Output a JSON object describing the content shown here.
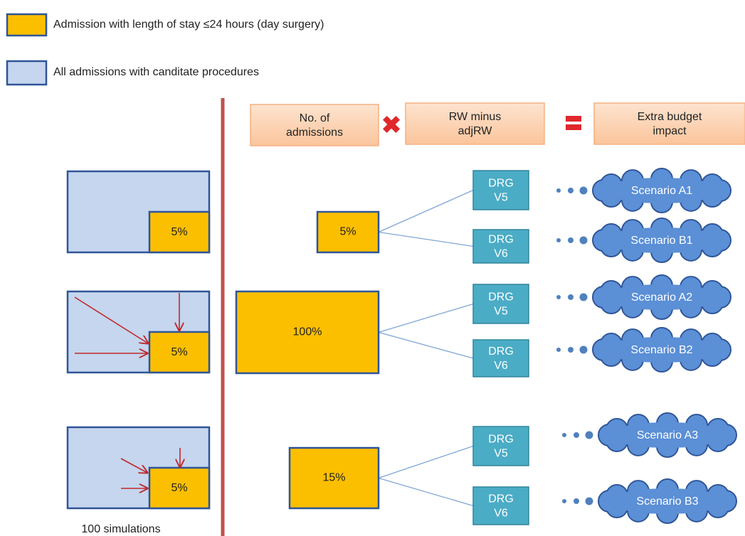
{
  "legend": [
    {
      "label": "Admission with length of stay ≤24 hours (day surgery)"
    },
    {
      "label": "All admissions with canditate procedures"
    }
  ],
  "header": [
    [
      "No. of",
      "admissions"
    ],
    [
      "RW minus",
      "adjRW"
    ],
    [
      "Extra budget",
      "impact"
    ]
  ],
  "left_panels": [
    "5%",
    "5%",
    "5%"
  ],
  "footer": "100 simulations",
  "groups": [
    {
      "share": "5%",
      "drgs": [
        [
          "DRG",
          "V5"
        ],
        [
          "DRG",
          "V6"
        ]
      ],
      "scenarios": [
        "Scenario A1",
        "Scenario B1"
      ]
    },
    {
      "share": "100%",
      "drgs": [
        [
          "DRG",
          "V5"
        ],
        [
          "DRG",
          "V6"
        ]
      ],
      "scenarios": [
        "Scenario A2",
        "Scenario B2"
      ]
    },
    {
      "share": "15%",
      "drgs": [
        [
          "DRG",
          "V5"
        ],
        [
          "DRG",
          "V6"
        ]
      ],
      "scenarios": [
        "Scenario A3",
        "Scenario B3"
      ]
    }
  ]
}
